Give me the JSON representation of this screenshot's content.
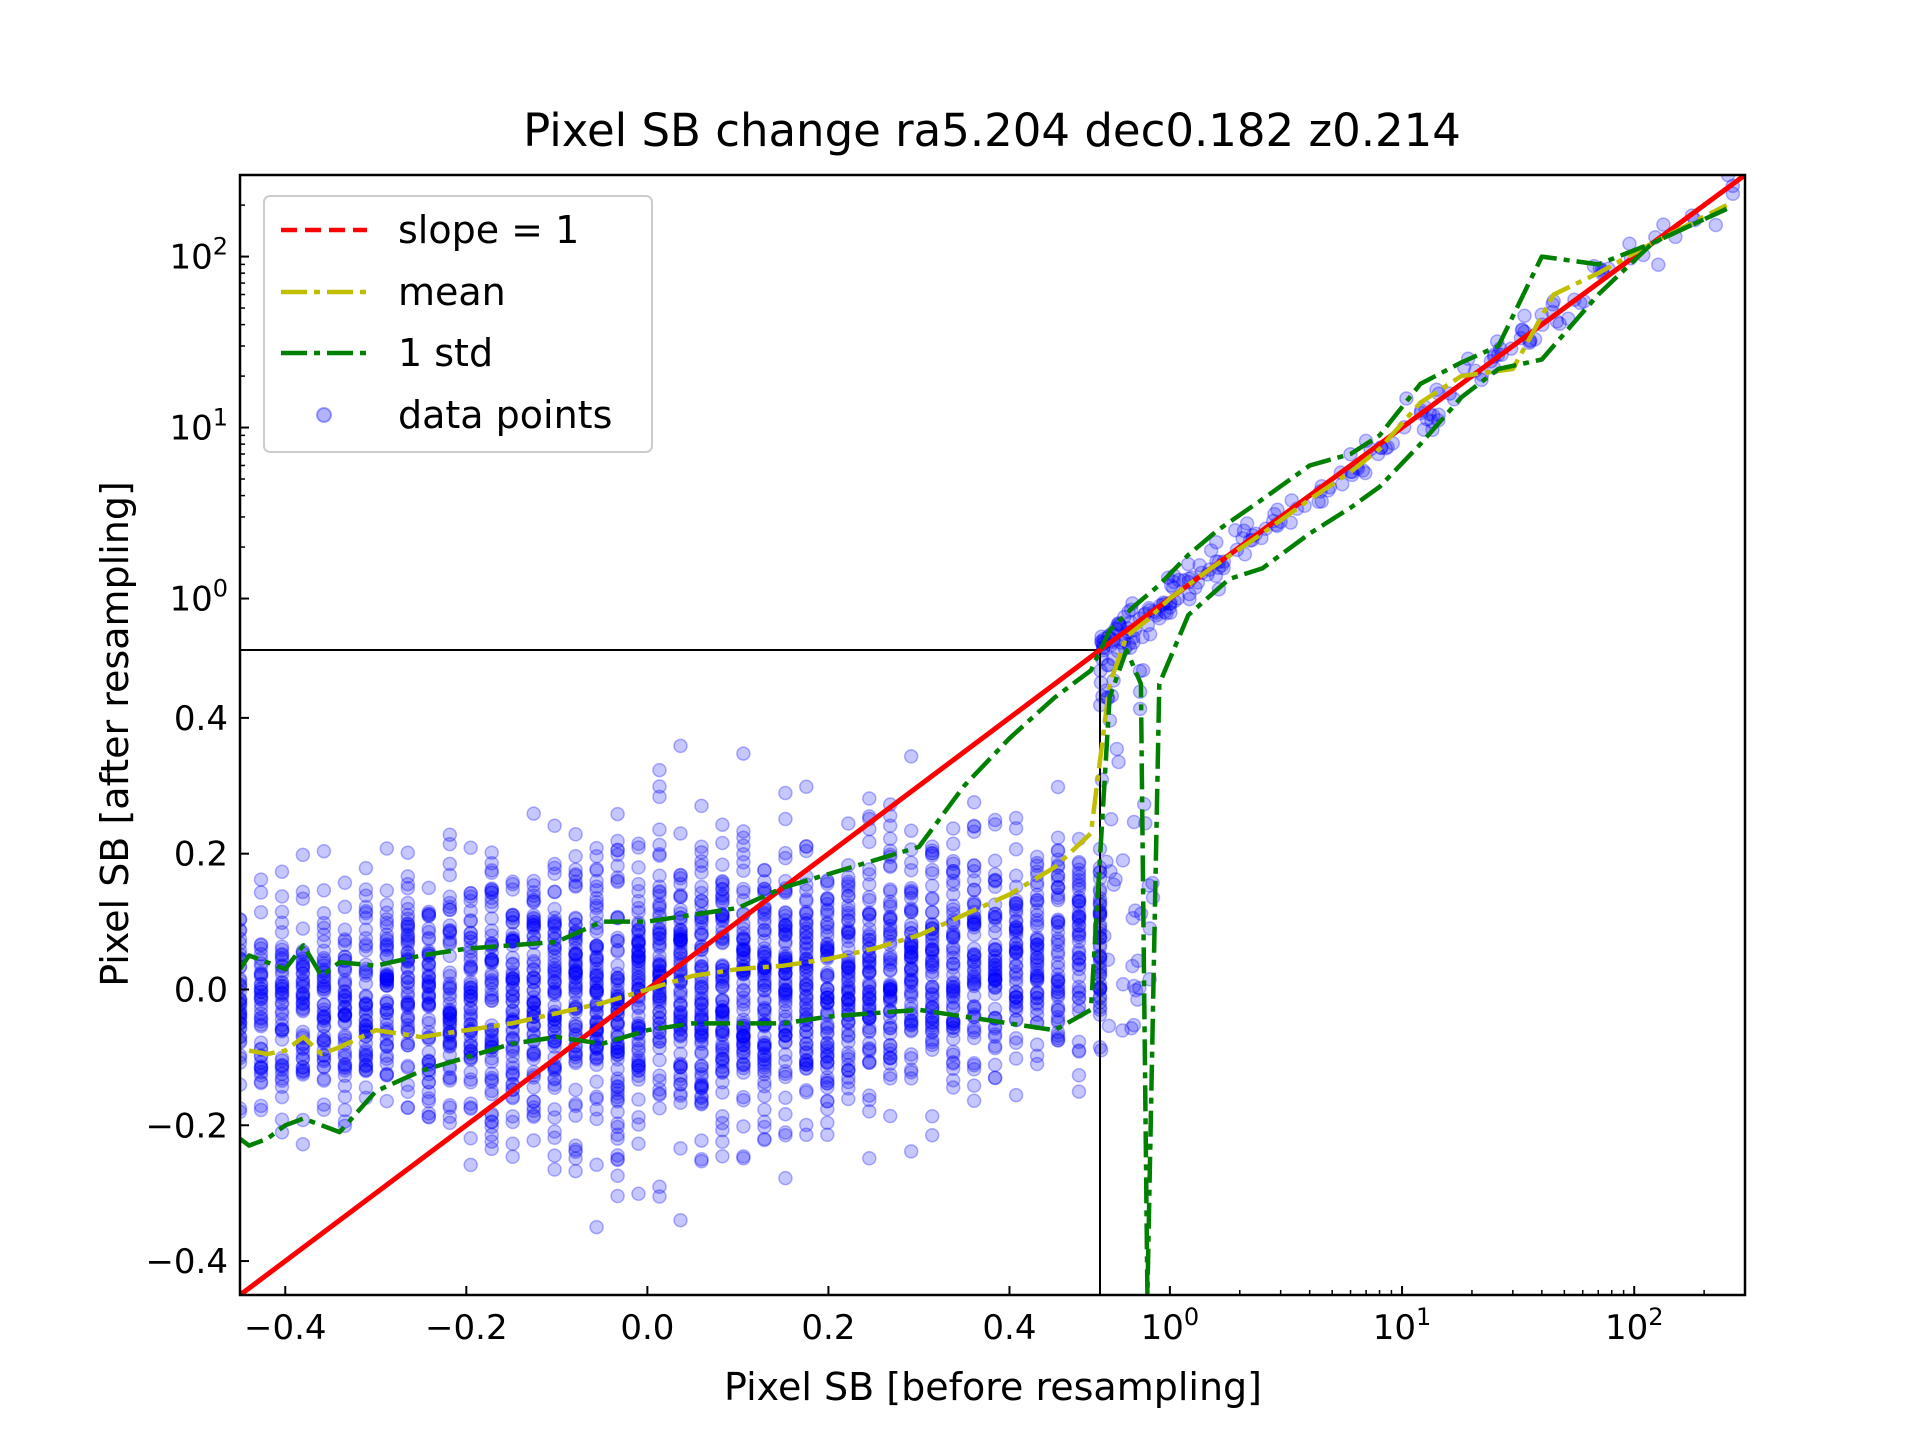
{
  "chart_data": {
    "type": "scatter",
    "title": "Pixel SB change ra5.204 dec0.182 z0.214",
    "xlabel": "Pixel SB [before resampling]",
    "ylabel": "Pixel SB [after resampling]",
    "scale": "symlog",
    "linear_threshold": 0.5,
    "xlim": [
      -0.45,
      300
    ],
    "ylim": [
      -0.45,
      300
    ],
    "x_ticks": [
      {
        "label": "−0.4",
        "value": -0.4
      },
      {
        "label": "−0.2",
        "value": -0.2
      },
      {
        "label": "0.0",
        "value": 0.0
      },
      {
        "label": "0.2",
        "value": 0.2
      },
      {
        "label": "0.4",
        "value": 0.4
      },
      {
        "label": "10",
        "exp": "0",
        "value": 1
      },
      {
        "label": "10",
        "exp": "1",
        "value": 10
      },
      {
        "label": "10",
        "exp": "2",
        "value": 100
      }
    ],
    "y_ticks": [
      {
        "label": "−0.4",
        "value": -0.4
      },
      {
        "label": "−0.2",
        "value": -0.2
      },
      {
        "label": "0.0",
        "value": 0.0
      },
      {
        "label": "0.2",
        "value": 0.2
      },
      {
        "label": "0.4",
        "value": 0.4
      },
      {
        "label": "10",
        "exp": "0",
        "value": 1
      },
      {
        "label": "10",
        "exp": "1",
        "value": 10
      },
      {
        "label": "10",
        "exp": "2",
        "value": 100
      }
    ],
    "legend_position": "top-left",
    "legend": [
      {
        "label": "slope = 1",
        "color": "#ff0000",
        "style": "dashed"
      },
      {
        "label": "mean",
        "color": "#bfbf00",
        "style": "dashdot"
      },
      {
        "label": "1 std",
        "color": "#008000",
        "style": "dashdot"
      },
      {
        "label": "data points",
        "color": "#0000ff",
        "style": "marker"
      }
    ],
    "series": [
      {
        "name": "slope = 1",
        "style": "line",
        "x": [
          -0.45,
          0.5,
          300
        ],
        "y": [
          -0.45,
          0.5,
          300
        ]
      },
      {
        "name": "mean",
        "style": "line",
        "x": [
          -0.44,
          -0.42,
          -0.4,
          -0.38,
          -0.36,
          -0.34,
          -0.3,
          -0.25,
          -0.2,
          -0.15,
          -0.1,
          -0.05,
          0.0,
          0.05,
          0.1,
          0.15,
          0.2,
          0.25,
          0.3,
          0.35,
          0.4,
          0.45,
          0.49,
          0.55,
          0.65,
          0.8,
          1.0,
          1.5,
          2.5,
          4,
          6,
          8,
          12,
          18,
          30,
          45,
          70,
          120,
          250
        ],
        "y": [
          -0.09,
          -0.095,
          -0.09,
          -0.07,
          -0.095,
          -0.085,
          -0.06,
          -0.07,
          -0.06,
          -0.05,
          -0.035,
          -0.02,
          0.0,
          0.02,
          0.03,
          0.035,
          0.045,
          0.06,
          0.08,
          0.11,
          0.14,
          0.18,
          0.23,
          0.45,
          0.6,
          0.75,
          1.0,
          1.5,
          2.4,
          3.8,
          5.5,
          7.5,
          14,
          20,
          22,
          60,
          80,
          120,
          200
        ]
      },
      {
        "name": "1 std (upper)",
        "style": "line",
        "x": [
          -0.45,
          -0.44,
          -0.42,
          -0.4,
          -0.38,
          -0.36,
          -0.34,
          -0.3,
          -0.25,
          -0.2,
          -0.15,
          -0.1,
          -0.05,
          0.0,
          0.05,
          0.1,
          0.15,
          0.2,
          0.25,
          0.3,
          0.35,
          0.4,
          0.45,
          0.49,
          0.55,
          0.7,
          0.9,
          1.2,
          1.6,
          2.5,
          4,
          6,
          8,
          12,
          18,
          26,
          40,
          70,
          120,
          250
        ],
        "y": [
          0.03,
          0.05,
          0.04,
          0.03,
          0.065,
          0.02,
          0.04,
          0.035,
          0.05,
          0.06,
          0.065,
          0.07,
          0.1,
          0.1,
          0.11,
          0.12,
          0.15,
          0.17,
          0.19,
          0.21,
          0.3,
          0.37,
          0.43,
          0.47,
          0.65,
          0.9,
          1.2,
          1.8,
          2.5,
          3.8,
          6,
          7,
          9,
          18,
          24,
          30,
          100,
          90,
          120,
          190
        ]
      },
      {
        "name": "1 std (lower)",
        "style": "line",
        "x": [
          -0.45,
          -0.44,
          -0.42,
          -0.4,
          -0.38,
          -0.36,
          -0.34,
          -0.3,
          -0.25,
          -0.2,
          -0.15,
          -0.1,
          -0.05,
          0.0,
          0.05,
          0.1,
          0.15,
          0.2,
          0.25,
          0.3,
          0.35,
          0.4,
          0.45,
          0.49,
          0.55,
          0.65,
          0.75,
          0.8,
          0.9,
          1.2,
          1.8,
          2.5,
          4,
          6,
          8,
          12,
          18,
          26,
          40,
          70,
          120,
          250
        ],
        "y": [
          -0.22,
          -0.23,
          -0.22,
          -0.2,
          -0.19,
          -0.2,
          -0.21,
          -0.15,
          -0.12,
          -0.1,
          -0.08,
          -0.07,
          -0.08,
          -0.06,
          -0.05,
          -0.05,
          -0.05,
          -0.04,
          -0.035,
          -0.03,
          -0.04,
          -0.05,
          -0.06,
          -0.03,
          0.43,
          0.5,
          0.45,
          -0.45,
          0.45,
          0.8,
          1.3,
          1.5,
          2.4,
          3.4,
          4.5,
          8,
          15,
          22,
          25,
          60,
          120,
          190
        ]
      }
    ],
    "points_note": "dense vertical columns of points at x = -0.45 to 0.49 step ~0.0235 (y spread ~ -0.3..0.3, grows with x), plus scatter along slope=1 above 0.5"
  },
  "inset_box": {
    "x_max": 0.5,
    "y_max": 0.5
  }
}
